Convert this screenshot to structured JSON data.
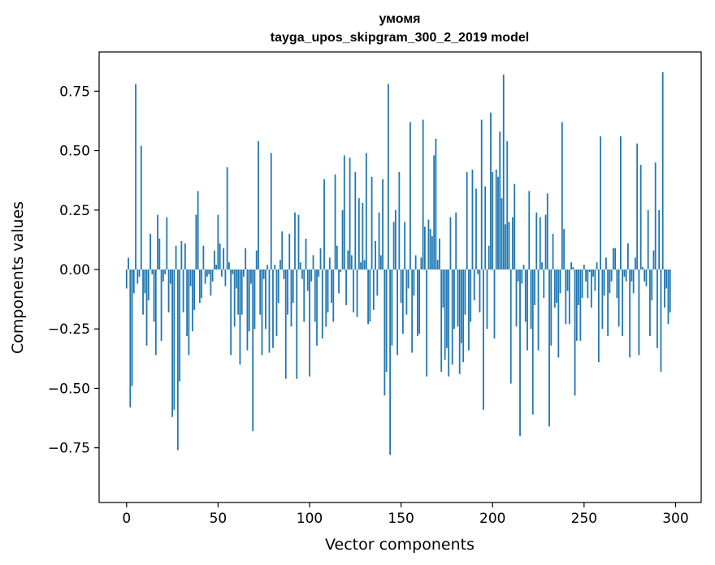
{
  "chart_data": {
    "type": "bar",
    "title": "умомя",
    "subtitle": "tayga_upos_skipgram_300_2_2019 model",
    "xlabel": "Vector components",
    "ylabel": "Components values",
    "xlim": [
      -15,
      314
    ],
    "ylim": [
      -0.98,
      0.915
    ],
    "xticks": [
      0,
      50,
      100,
      150,
      200,
      250,
      300
    ],
    "yticks": [
      -0.75,
      -0.5,
      -0.25,
      0.0,
      0.25,
      0.5,
      0.75
    ],
    "ytick_labels": [
      "−0.75",
      "−0.50",
      "−0.25",
      "0.00",
      "0.25",
      "0.50",
      "0.75"
    ],
    "grid": false,
    "color": "#1f77b4",
    "bar_width": 0.8,
    "values": [
      -0.08,
      0.05,
      -0.58,
      -0.49,
      -0.1,
      0.78,
      -0.06,
      -0.03,
      0.52,
      -0.19,
      -0.1,
      -0.32,
      -0.13,
      0.15,
      -0.02,
      -0.22,
      -0.36,
      0.23,
      0.13,
      -0.3,
      -0.05,
      -0.02,
      0.22,
      -0.18,
      -0.06,
      -0.62,
      -0.59,
      0.1,
      -0.76,
      -0.47,
      0.12,
      -0.18,
      0.11,
      -0.28,
      -0.36,
      -0.07,
      -0.26,
      -0.17,
      0.23,
      0.33,
      -0.14,
      -0.12,
      0.1,
      -0.06,
      -0.03,
      -0.02,
      -0.11,
      -0.05,
      0.08,
      0.02,
      0.23,
      0.11,
      -0.03,
      0.09,
      -0.07,
      0.43,
      0.03,
      -0.36,
      -0.02,
      -0.24,
      -0.08,
      -0.19,
      -0.4,
      -0.19,
      -0.03,
      0.09,
      -0.34,
      -0.26,
      -0.06,
      -0.68,
      -0.25,
      0.08,
      0.54,
      -0.19,
      -0.36,
      -0.04,
      -0.25,
      0.02,
      -0.35,
      0.49,
      -0.33,
      0.02,
      -0.28,
      -0.14,
      0.04,
      0.16,
      -0.04,
      -0.46,
      -0.19,
      0.15,
      -0.24,
      -0.14,
      0.24,
      -0.46,
      0.23,
      0.03,
      -0.04,
      -0.22,
      0.13,
      -0.09,
      -0.45,
      -0.05,
      0.06,
      -0.22,
      -0.32,
      -0.03,
      0.09,
      -0.29,
      0.38,
      -0.24,
      -0.18,
      0.05,
      -0.14,
      -0.22,
      0.4,
      0.1,
      -0.1,
      -0.01,
      0.25,
      0.48,
      -0.15,
      0.08,
      0.47,
      0.06,
      -0.18,
      0.41,
      -0.2,
      0.3,
      0.03,
      0.28,
      0.04,
      0.49,
      -0.23,
      -0.22,
      0.39,
      -0.17,
      0.12,
      -0.11,
      0.24,
      0.06,
      0.38,
      -0.53,
      -0.43,
      0.78,
      -0.78,
      -0.32,
      0.2,
      0.25,
      -0.36,
      0.41,
      -0.14,
      -0.27,
      0.2,
      -0.19,
      -0.08,
      0.62,
      -0.35,
      -0.11,
      0.06,
      -0.28,
      -0.27,
      0.05,
      0.63,
      0.18,
      -0.45,
      0.21,
      0.17,
      0.14,
      0.48,
      0.55,
      0.04,
      0.13,
      -0.43,
      -0.16,
      -0.38,
      -0.33,
      -0.45,
      0.22,
      -0.4,
      -0.25,
      0.24,
      -0.24,
      -0.44,
      -0.31,
      -0.39,
      -0.19,
      0.41,
      -0.34,
      -0.22,
      0.42,
      -0.13,
      0.34,
      -0.02,
      -0.18,
      0.63,
      -0.59,
      0.35,
      -0.25,
      0.1,
      0.66,
      0.41,
      -0.29,
      0.42,
      0.39,
      0.58,
      0.3,
      0.82,
      0.19,
      0.54,
      0.2,
      -0.48,
      0.22,
      0.36,
      -0.24,
      -0.05,
      -0.7,
      -0.06,
      0.02,
      -0.22,
      -0.34,
      0.33,
      -0.25,
      -0.61,
      -0.15,
      0.24,
      -0.34,
      0.22,
      0.03,
      -0.12,
      0.23,
      0.32,
      -0.66,
      -0.32,
      0.15,
      -0.16,
      -0.14,
      -0.37,
      -0.1,
      0.62,
      0.17,
      -0.23,
      -0.09,
      -0.23,
      0.03,
      0.01,
      -0.53,
      -0.3,
      -0.15,
      -0.3,
      -0.12,
      0.02,
      -0.05,
      -0.12,
      -0.01,
      -0.16,
      -0.03,
      -0.09,
      0.03,
      -0.39,
      0.56,
      -0.25,
      -0.11,
      0.05,
      -0.28,
      -0.1,
      -0.05,
      0.09,
      0.09,
      -0.12,
      -0.24,
      0.56,
      -0.28,
      -0.03,
      -0.05,
      0.11,
      -0.37,
      -0.05,
      -0.1,
      0.05,
      0.53,
      -0.36,
      0.44,
      0.01,
      -0.05,
      -0.07,
      0.25,
      -0.28,
      -0.13,
      0.08,
      0.45,
      -0.33,
      0.25,
      -0.43,
      0.83,
      -0.16,
      -0.08,
      -0.23,
      -0.18
    ]
  }
}
